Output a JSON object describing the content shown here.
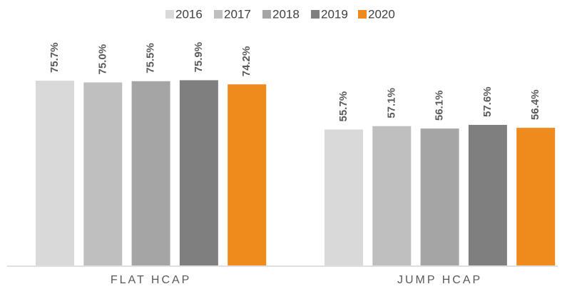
{
  "chart_data": {
    "type": "bar",
    "categories": [
      "FLAT HCAP",
      "JUMP HCAP"
    ],
    "series": [
      {
        "name": "2016",
        "color": "#d9d9d9",
        "values": [
          75.7,
          55.7
        ],
        "value_labels": [
          "75.7%",
          "55.7%"
        ]
      },
      {
        "name": "2017",
        "color": "#bfbfbf",
        "values": [
          75.0,
          57.1
        ],
        "value_labels": [
          "75.0%",
          "57.1%"
        ]
      },
      {
        "name": "2018",
        "color": "#a5a5a5",
        "values": [
          75.5,
          56.1
        ],
        "value_labels": [
          "75.5%",
          "56.1%"
        ]
      },
      {
        "name": "2019",
        "color": "#7f7f7f",
        "values": [
          75.9,
          57.6
        ],
        "value_labels": [
          "75.9%",
          "57.6%"
        ]
      },
      {
        "name": "2020",
        "color": "#ef8b1c",
        "values": [
          74.2,
          56.4
        ],
        "value_labels": [
          "74.2%",
          "56.4%"
        ]
      }
    ],
    "ylim": [
      0,
      100
    ]
  }
}
